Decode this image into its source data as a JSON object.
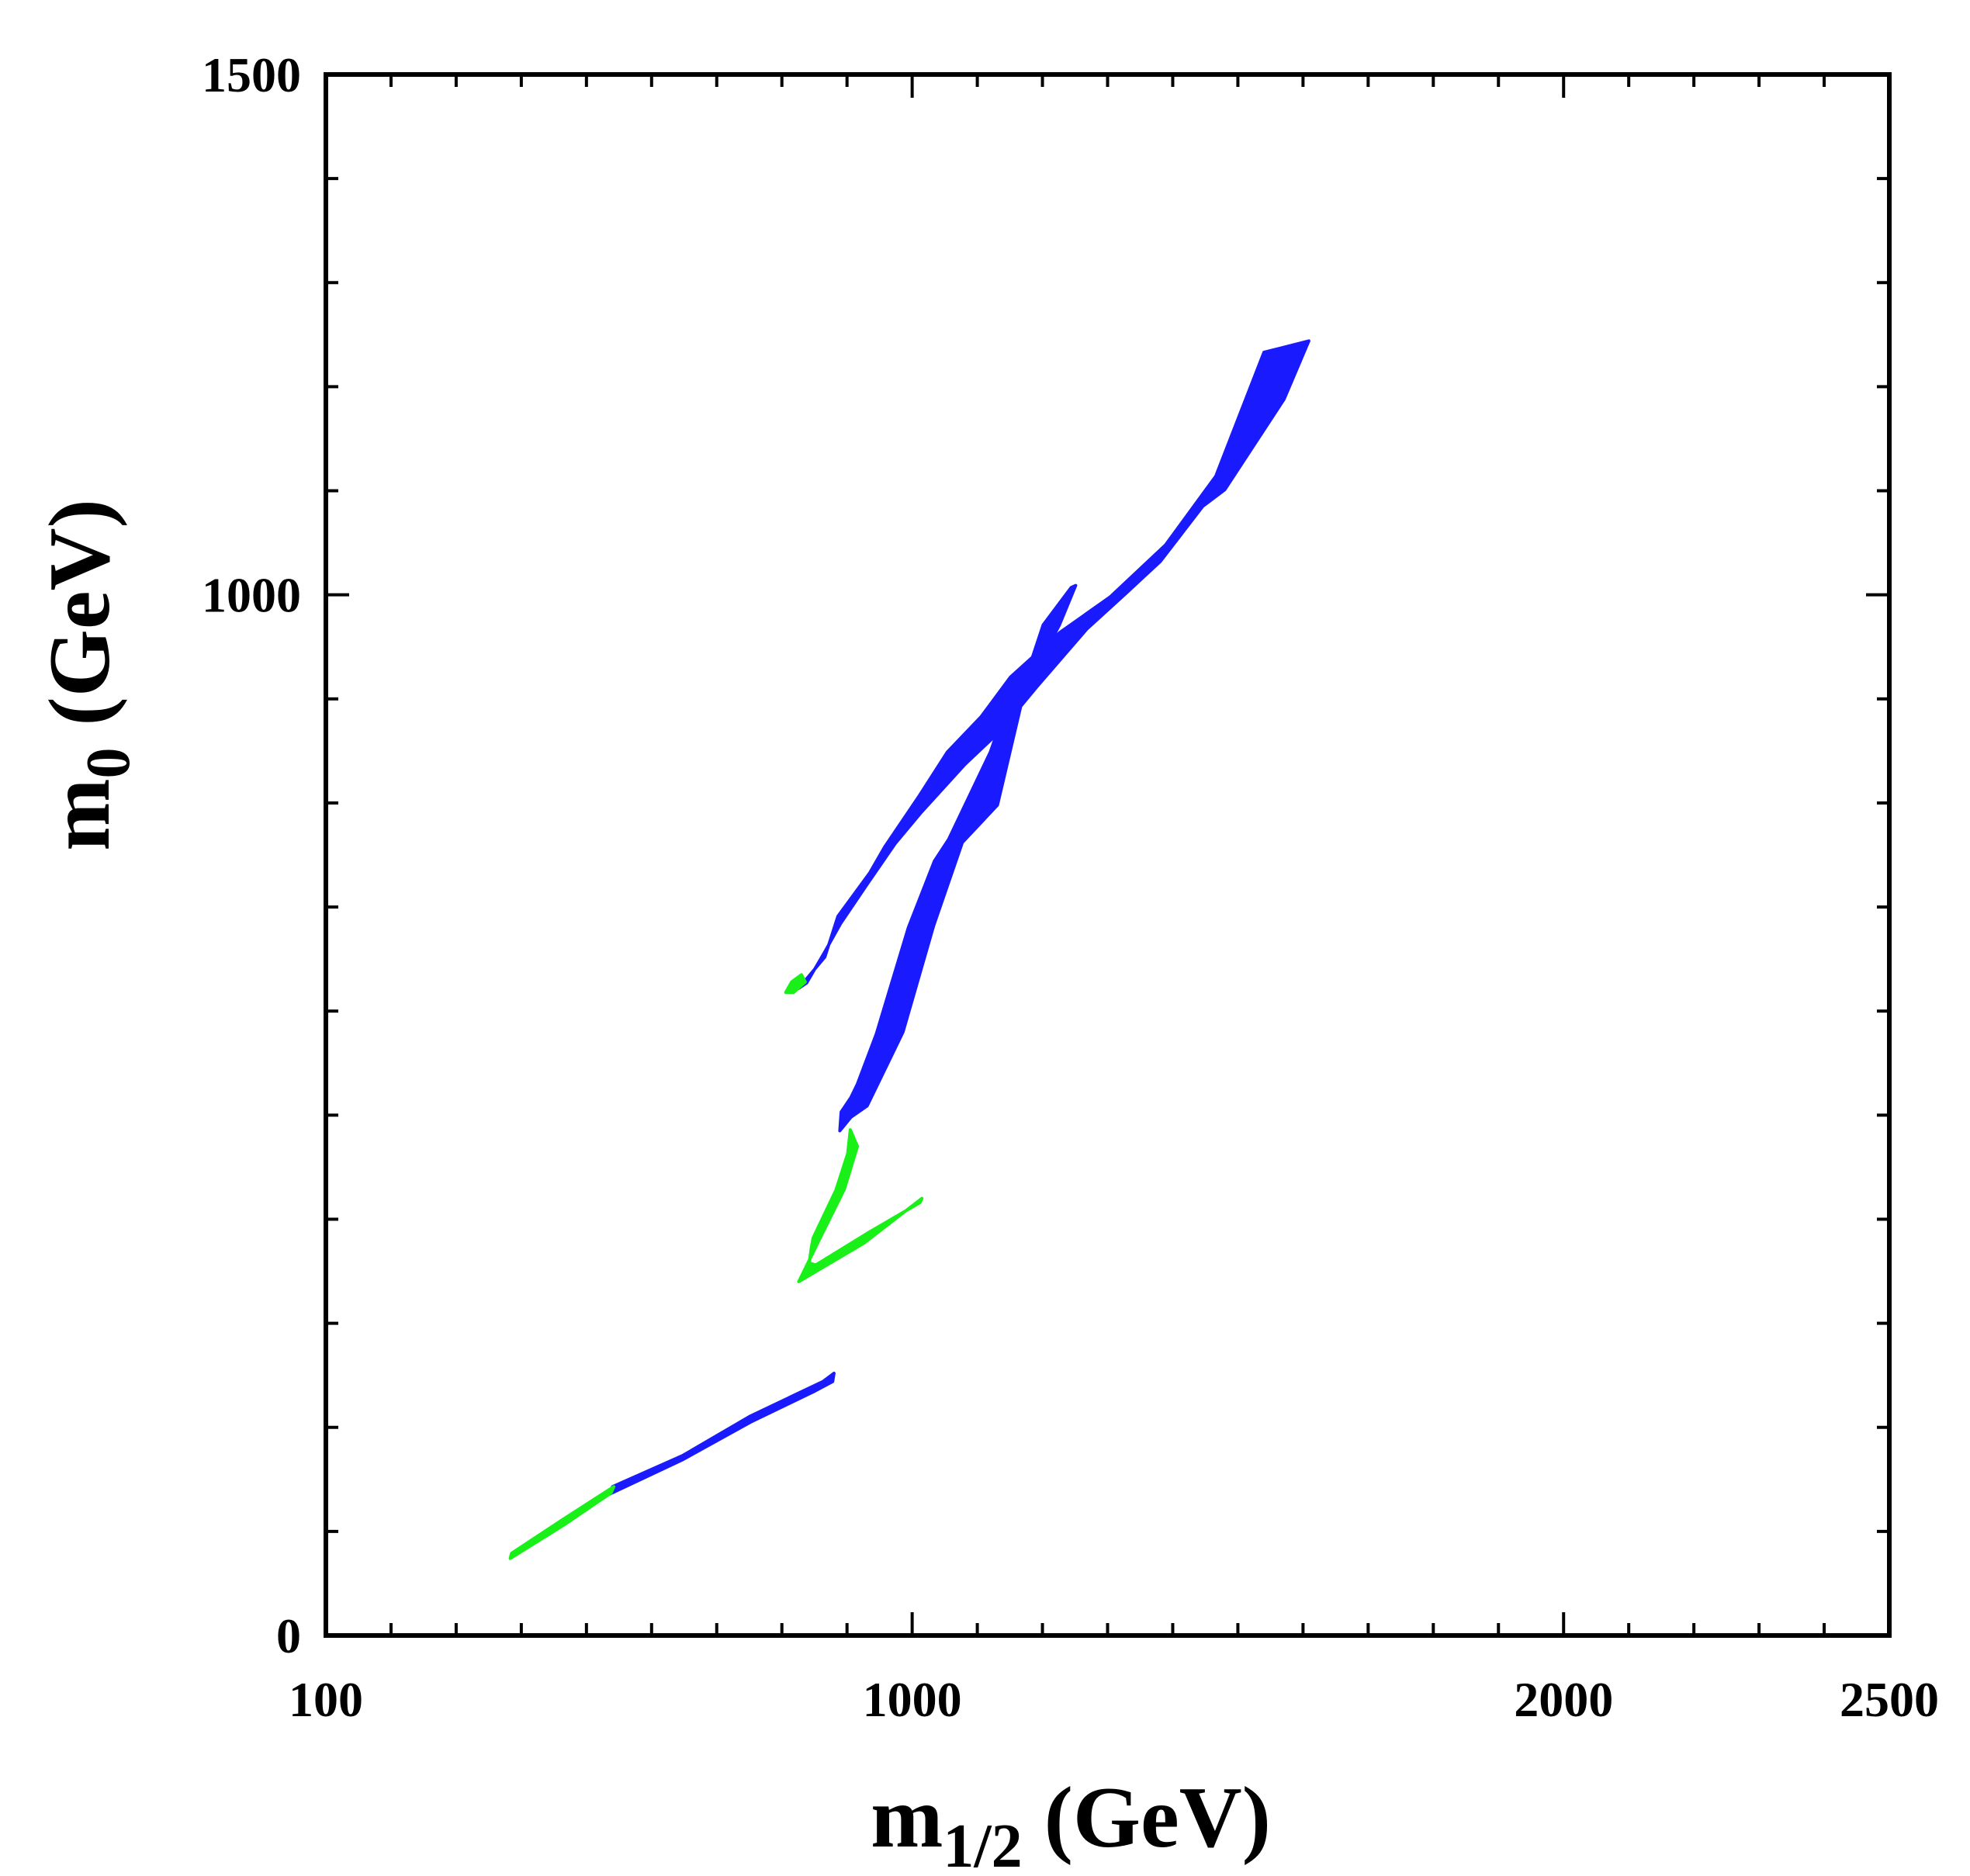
{
  "chart_data": {
    "type": "area",
    "title": "",
    "xlabel": {
      "main": "m",
      "sub": "1/2",
      "unit": " (GeV)"
    },
    "ylabel": {
      "main": "m",
      "sub": "0",
      "unit": " (GeV)"
    },
    "xlim": [
      100,
      2500
    ],
    "ylim": [
      0,
      1500
    ],
    "x_ticks": [
      {
        "value": 100,
        "label": "100"
      },
      {
        "value": 1000,
        "label": "1000"
      },
      {
        "value": 2000,
        "label": "2000"
      },
      {
        "value": 2500,
        "label": "2500"
      }
    ],
    "y_ticks": [
      {
        "value": 0,
        "label": "0"
      },
      {
        "value": 1000,
        "label": "1000"
      },
      {
        "value": 1500,
        "label": "1500"
      }
    ],
    "x_minor_step": 100,
    "y_minor_step": 100,
    "colors": {
      "blue": "#1a1aff",
      "green": "#18f018"
    },
    "series": [
      {
        "name": "upper-blue-band",
        "color": "#1a1aff",
        "points": [
          [
            826,
            622
          ],
          [
            866,
            652
          ],
          [
            886,
            691
          ],
          [
            935,
            733
          ],
          [
            958,
            758
          ],
          [
            1011,
            807
          ],
          [
            1054,
            849
          ],
          [
            1106,
            883
          ],
          [
            1151,
            921
          ],
          [
            1227,
            964
          ],
          [
            1304,
            998
          ],
          [
            1389,
            1048
          ],
          [
            1466,
            1114
          ],
          [
            1540,
            1233
          ],
          [
            1609,
            1244
          ],
          [
            1571,
            1188
          ],
          [
            1480,
            1101
          ],
          [
            1446,
            1085
          ],
          [
            1381,
            1032
          ],
          [
            1331,
            1003
          ],
          [
            1268,
            967
          ],
          [
            1192,
            912
          ],
          [
            1135,
            869
          ],
          [
            1081,
            837
          ],
          [
            1014,
            791
          ],
          [
            974,
            761
          ],
          [
            931,
            722
          ],
          [
            890,
            684
          ],
          [
            866,
            657
          ],
          [
            838,
            627
          ]
        ]
      },
      {
        "name": "upper-green-tip",
        "color": "#18f018",
        "points": [
          [
            806,
            618
          ],
          [
            818,
            618
          ],
          [
            836,
            628
          ],
          [
            830,
            635
          ],
          [
            815,
            628
          ]
        ]
      },
      {
        "name": "middle-blue-strip",
        "color": "#1a1aff",
        "points": [
          [
            889,
            485
          ],
          [
            906,
            498
          ],
          [
            931,
            509
          ],
          [
            986,
            580
          ],
          [
            1033,
            682
          ],
          [
            1077,
            762
          ],
          [
            1131,
            798
          ],
          [
            1172,
            907
          ],
          [
            1226,
            971
          ],
          [
            1251,
            1009
          ],
          [
            1244,
            1007
          ],
          [
            1201,
            971
          ],
          [
            1162,
            897
          ],
          [
            1151,
            904
          ],
          [
            1120,
            849
          ],
          [
            1056,
            765
          ],
          [
            1034,
            744
          ],
          [
            994,
            680
          ],
          [
            945,
            578
          ],
          [
            916,
            530
          ],
          [
            906,
            517
          ],
          [
            891,
            503
          ]
        ]
      },
      {
        "name": "middle-green-hook",
        "color": "#18f018",
        "points": [
          [
            905,
            486
          ],
          [
            916,
            470
          ],
          [
            896,
            429
          ],
          [
            858,
            381
          ],
          [
            826,
            340
          ],
          [
            926,
            377
          ],
          [
            1015,
            420
          ],
          [
            1012,
            416
          ],
          [
            935,
            388
          ],
          [
            852,
            356
          ],
          [
            842,
            358
          ],
          [
            845,
            372
          ],
          [
            848,
            382
          ],
          [
            883,
            428
          ],
          [
            901,
            463
          ]
        ]
      },
      {
        "name": "lower-blue-strip",
        "color": "#1a1aff",
        "points": [
          [
            540,
            143
          ],
          [
            648,
            173
          ],
          [
            752,
            211
          ],
          [
            863,
            244
          ],
          [
            880,
            252
          ],
          [
            878,
            244
          ],
          [
            848,
            234
          ],
          [
            752,
            205
          ],
          [
            648,
            169
          ],
          [
            536,
            136
          ]
        ]
      },
      {
        "name": "lower-green-strip",
        "color": "#18f018",
        "points": [
          [
            385,
            79
          ],
          [
            465,
            112
          ],
          [
            542,
            143
          ],
          [
            538,
            137
          ],
          [
            465,
            106
          ],
          [
            383,
            74
          ]
        ]
      }
    ]
  }
}
